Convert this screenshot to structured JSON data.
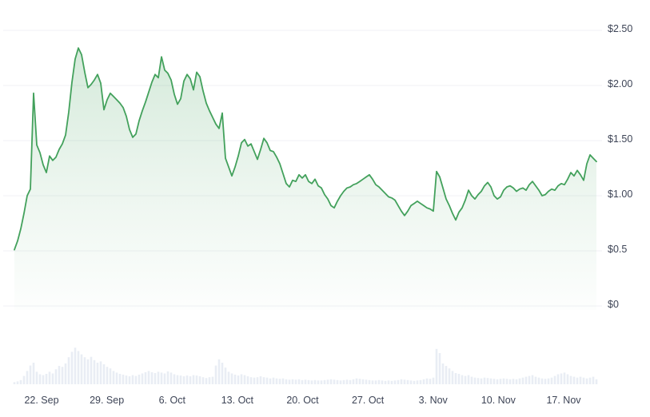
{
  "chart_data": {
    "type": "area",
    "description": "price-over-time-area-chart-with-volume-bars",
    "currency": "USD",
    "ylim": [
      0,
      2.5
    ],
    "grid": true,
    "legend": "none",
    "ytick_values": [
      2.5,
      2.0,
      1.5,
      1.0,
      0.5,
      0
    ],
    "ytick_labels": [
      "$2.50",
      "$2.00",
      "$1.50",
      "$1.00",
      "$0.5",
      "$0"
    ],
    "xtick_labels": [
      "22. Sep",
      "29. Sep",
      "6. Oct",
      "13. Oct",
      "20. Oct",
      "27. Oct",
      "3. Nov",
      "10. Nov",
      "17. Nov"
    ],
    "series": [
      {
        "name": "price-usd",
        "type": "line-area",
        "values": [
          0.51,
          0.59,
          0.7,
          0.84,
          1.0,
          1.06,
          1.93,
          1.46,
          1.39,
          1.28,
          1.21,
          1.36,
          1.32,
          1.35,
          1.42,
          1.47,
          1.55,
          1.76,
          2.03,
          2.24,
          2.34,
          2.28,
          2.12,
          1.98,
          2.01,
          2.05,
          2.1,
          2.02,
          1.78,
          1.87,
          1.93,
          1.9,
          1.87,
          1.84,
          1.8,
          1.72,
          1.6,
          1.53,
          1.56,
          1.68,
          1.77,
          1.85,
          1.94,
          2.03,
          2.1,
          2.07,
          2.26,
          2.14,
          2.11,
          2.05,
          1.92,
          1.83,
          1.88,
          2.04,
          2.1,
          2.06,
          1.96,
          2.12,
          2.08,
          1.95,
          1.84,
          1.77,
          1.71,
          1.65,
          1.61,
          1.75,
          1.34,
          1.26,
          1.18,
          1.26,
          1.36,
          1.48,
          1.51,
          1.45,
          1.47,
          1.4,
          1.33,
          1.42,
          1.52,
          1.48,
          1.41,
          1.4,
          1.35,
          1.29,
          1.2,
          1.11,
          1.08,
          1.14,
          1.13,
          1.19,
          1.16,
          1.19,
          1.13,
          1.11,
          1.15,
          1.09,
          1.07,
          1.01,
          0.97,
          0.91,
          0.89,
          0.95,
          1.0,
          1.04,
          1.07,
          1.08,
          1.1,
          1.11,
          1.13,
          1.15,
          1.17,
          1.19,
          1.15,
          1.1,
          1.08,
          1.05,
          1.02,
          0.99,
          0.98,
          0.96,
          0.91,
          0.86,
          0.82,
          0.86,
          0.91,
          0.93,
          0.95,
          0.93,
          0.91,
          0.89,
          0.88,
          0.86,
          1.22,
          1.17,
          1.07,
          0.97,
          0.91,
          0.84,
          0.78,
          0.85,
          0.89,
          0.96,
          1.05,
          1.0,
          0.97,
          1.01,
          1.04,
          1.09,
          1.12,
          1.08,
          1.0,
          0.97,
          0.99,
          1.05,
          1.08,
          1.09,
          1.07,
          1.04,
          1.06,
          1.07,
          1.05,
          1.1,
          1.13,
          1.09,
          1.05,
          1.0,
          1.01,
          1.04,
          1.06,
          1.05,
          1.09,
          1.11,
          1.1,
          1.15,
          1.21,
          1.18,
          1.23,
          1.19,
          1.14,
          1.29,
          1.37,
          1.34,
          1.31
        ]
      },
      {
        "name": "volume-relative",
        "type": "bar",
        "values": [
          0.05,
          0.07,
          0.1,
          0.2,
          0.32,
          0.45,
          0.52,
          0.3,
          0.24,
          0.22,
          0.25,
          0.3,
          0.26,
          0.36,
          0.44,
          0.42,
          0.5,
          0.65,
          0.78,
          0.88,
          0.8,
          0.72,
          0.65,
          0.6,
          0.66,
          0.58,
          0.52,
          0.55,
          0.48,
          0.42,
          0.38,
          0.32,
          0.28,
          0.25,
          0.23,
          0.21,
          0.19,
          0.22,
          0.2,
          0.23,
          0.26,
          0.29,
          0.32,
          0.29,
          0.27,
          0.3,
          0.28,
          0.26,
          0.31,
          0.28,
          0.24,
          0.22,
          0.21,
          0.19,
          0.21,
          0.19,
          0.22,
          0.21,
          0.19,
          0.17,
          0.15,
          0.17,
          0.18,
          0.45,
          0.6,
          0.52,
          0.4,
          0.3,
          0.26,
          0.23,
          0.21,
          0.24,
          0.22,
          0.19,
          0.17,
          0.16,
          0.17,
          0.19,
          0.17,
          0.16,
          0.14,
          0.16,
          0.14,
          0.13,
          0.14,
          0.12,
          0.11,
          0.12,
          0.11,
          0.12,
          0.1,
          0.11,
          0.1,
          0.09,
          0.1,
          0.09,
          0.09,
          0.1,
          0.11,
          0.12,
          0.11,
          0.1,
          0.09,
          0.1,
          0.11,
          0.1,
          0.12,
          0.14,
          0.13,
          0.12,
          0.11,
          0.1,
          0.09,
          0.09,
          0.1,
          0.09,
          0.08,
          0.09,
          0.08,
          0.09,
          0.1,
          0.12,
          0.11,
          0.1,
          0.09,
          0.08,
          0.09,
          0.1,
          0.12,
          0.14,
          0.13,
          0.16,
          0.85,
          0.75,
          0.5,
          0.44,
          0.38,
          0.32,
          0.27,
          0.25,
          0.22,
          0.2,
          0.22,
          0.18,
          0.16,
          0.15,
          0.14,
          0.16,
          0.15,
          0.14,
          0.13,
          0.12,
          0.13,
          0.14,
          0.13,
          0.12,
          0.13,
          0.12,
          0.14,
          0.16,
          0.18,
          0.2,
          0.22,
          0.18,
          0.16,
          0.14,
          0.13,
          0.14,
          0.16,
          0.2,
          0.24,
          0.26,
          0.28,
          0.24,
          0.2,
          0.18,
          0.16,
          0.18,
          0.16,
          0.14,
          0.16,
          0.18,
          0.12
        ]
      }
    ],
    "colors": {
      "line": "#43a15c",
      "fill_top": "rgba(67,161,92,0.24)",
      "fill_mid": "rgba(67,161,92,0.10)",
      "fill_bottom": "rgba(67,161,92,0.01)",
      "volume_bar": "#e9edf4",
      "gridline": "#f0f1f4",
      "axis_text": "#3d4456",
      "background": "#ffffff"
    }
  }
}
